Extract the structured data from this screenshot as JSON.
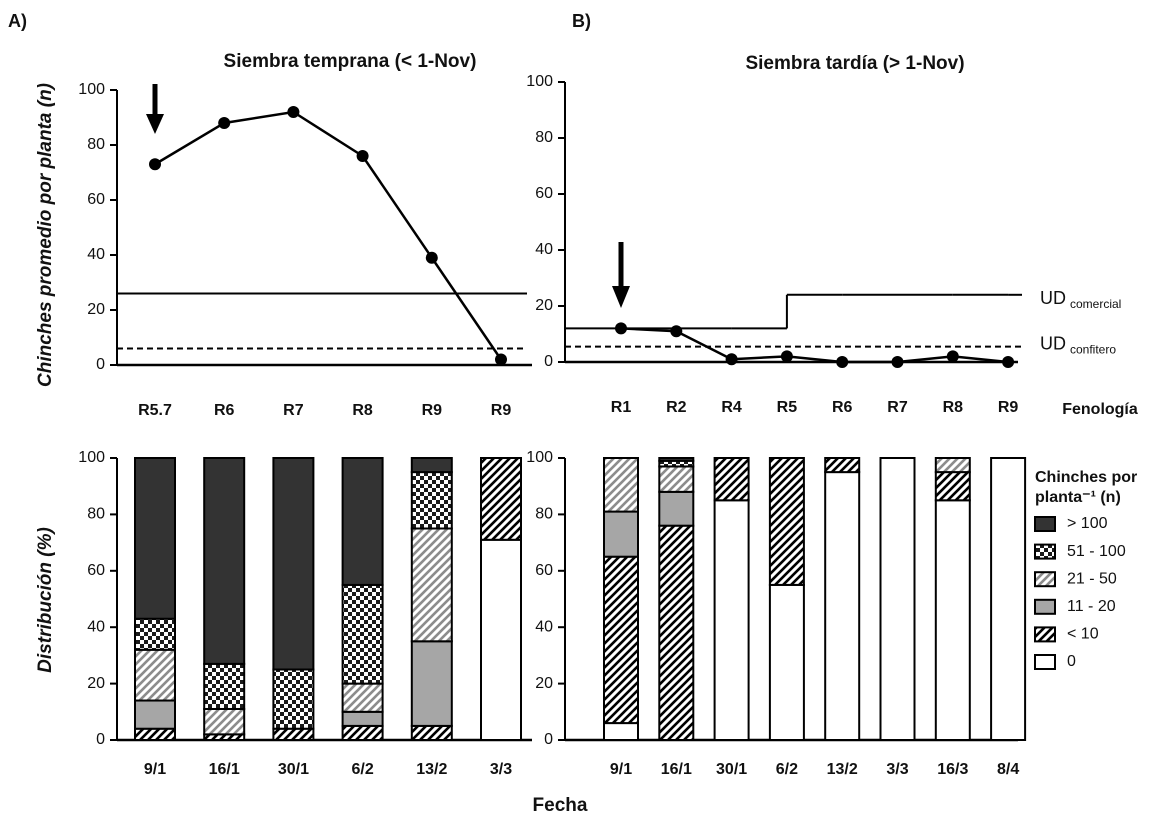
{
  "chart_data": [
    {
      "type": "line",
      "panel": "A)",
      "title": "Siembra temprana (< 1-Nov)",
      "ylabel": "Chinches promedio por planta (n)",
      "categories": [
        "R5.7",
        "R6",
        "R7",
        "R8",
        "R9",
        "R9"
      ],
      "values": [
        73,
        88,
        92,
        76,
        39,
        2
      ],
      "color": "#000000",
      "ylim": [
        0,
        100
      ],
      "yticks": [
        0,
        20,
        40,
        60,
        80,
        100
      ],
      "reference_lines": [
        {
          "y": 26,
          "style": "solid"
        },
        {
          "y": 6,
          "style": "dashed"
        }
      ]
    },
    {
      "type": "line",
      "panel": "B)",
      "title": "Siembra tardía (> 1-Nov)",
      "xlabel": "Fenología",
      "categories": [
        "R1",
        "R2",
        "R4",
        "R5",
        "R6",
        "R7",
        "R8",
        "R9"
      ],
      "values": [
        12,
        11,
        1,
        2,
        0,
        0,
        2,
        0
      ],
      "color": "#000000",
      "ylim": [
        0,
        100
      ],
      "yticks": [
        0,
        20,
        40,
        60,
        80,
        100
      ],
      "reference_lines": [
        {
          "label": "UD",
          "sub": "comercial",
          "style": "solid",
          "values": [
            12,
            12,
            12,
            24,
            24,
            24,
            24,
            24
          ]
        },
        {
          "label": "UD",
          "sub": "confitero",
          "style": "dashed",
          "y": 5.5
        }
      ]
    },
    {
      "type": "stacked_bar",
      "ylabel": "Distribución (%)",
      "xlabel": "Fecha",
      "categories": [
        "9/1",
        "16/1",
        "30/1",
        "6/2",
        "13/2",
        "3/3"
      ],
      "ylim": [
        0,
        100
      ],
      "yticks": [
        0,
        20,
        40,
        60,
        80,
        100
      ],
      "series": [
        {
          "name": "0",
          "color": "#ffffff",
          "pattern": "solid",
          "values": [
            0,
            0,
            0,
            0,
            0,
            71
          ]
        },
        {
          "name": "< 10",
          "color": "#000000",
          "pattern": "hatch",
          "values": [
            4,
            2,
            4,
            5,
            5,
            29
          ]
        },
        {
          "name": "11 - 20",
          "color": "#a6a6a6",
          "pattern": "solid",
          "values": [
            10,
            0,
            0,
            5,
            30,
            0
          ]
        },
        {
          "name": "21 - 50",
          "color": "#8c8c8c",
          "pattern": "hatch",
          "values": [
            18,
            9,
            0,
            10,
            40,
            0
          ]
        },
        {
          "name": "51 - 100",
          "color": "#1a1a1a",
          "pattern": "checker",
          "values": [
            11,
            16,
            21,
            35,
            20,
            0
          ]
        },
        {
          "name": "> 100",
          "color": "#333333",
          "pattern": "solid",
          "values": [
            57,
            73,
            75,
            45,
            5,
            0
          ]
        }
      ]
    },
    {
      "type": "stacked_bar",
      "legend": "right",
      "legend_title": [
        "Chinches por",
        "planta⁻¹ (n)"
      ],
      "categories": [
        "9/1",
        "16/1",
        "30/1",
        "6/2",
        "13/2",
        "3/3",
        "16/3",
        "8/4"
      ],
      "ylim": [
        0,
        100
      ],
      "yticks": [
        0,
        20,
        40,
        60,
        80,
        100
      ],
      "series": [
        {
          "name": "0",
          "color": "#ffffff",
          "pattern": "solid",
          "values": [
            6,
            0,
            85,
            55,
            95,
            100,
            85,
            100
          ]
        },
        {
          "name": "< 10",
          "color": "#000000",
          "pattern": "hatch",
          "values": [
            59,
            76,
            15,
            45,
            5,
            0,
            10,
            0
          ]
        },
        {
          "name": "11 - 20",
          "color": "#a6a6a6",
          "pattern": "solid",
          "values": [
            16,
            12,
            0,
            0,
            0,
            0,
            0,
            0
          ]
        },
        {
          "name": "21 - 50",
          "color": "#8c8c8c",
          "pattern": "hatch",
          "values": [
            19,
            9,
            0,
            0,
            0,
            0,
            5,
            0
          ]
        },
        {
          "name": "51 - 100",
          "color": "#1a1a1a",
          "pattern": "checker",
          "values": [
            0,
            2,
            0,
            0,
            0,
            0,
            0,
            0
          ]
        },
        {
          "name": "> 100",
          "color": "#333333",
          "pattern": "solid",
          "values": [
            0,
            1,
            0,
            0,
            0,
            0,
            0,
            0
          ]
        }
      ]
    }
  ]
}
